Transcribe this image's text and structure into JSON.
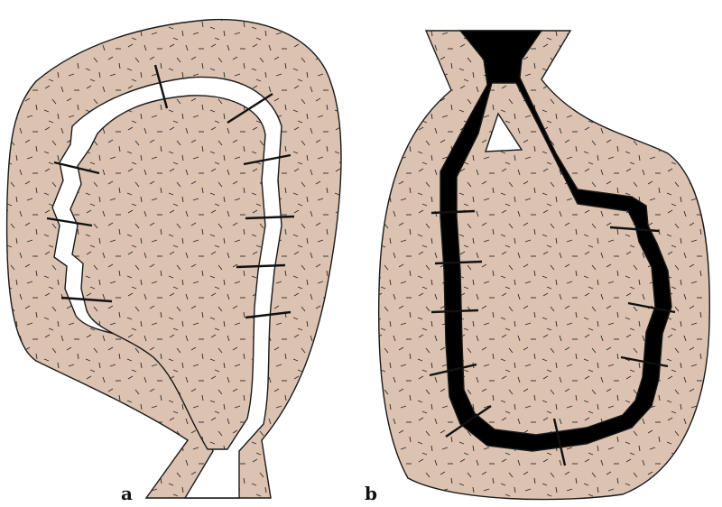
{
  "figure": {
    "panels": [
      {
        "id": "a",
        "label": "a",
        "channel": "open"
      },
      {
        "id": "b",
        "label": "b",
        "channel": "filled"
      }
    ]
  },
  "colors": {
    "rock": "#dcc2b0",
    "outline": "#1a1a1a",
    "open_channel": "#ffffff",
    "filled_channel": "#000000",
    "background": "#ffffff"
  }
}
